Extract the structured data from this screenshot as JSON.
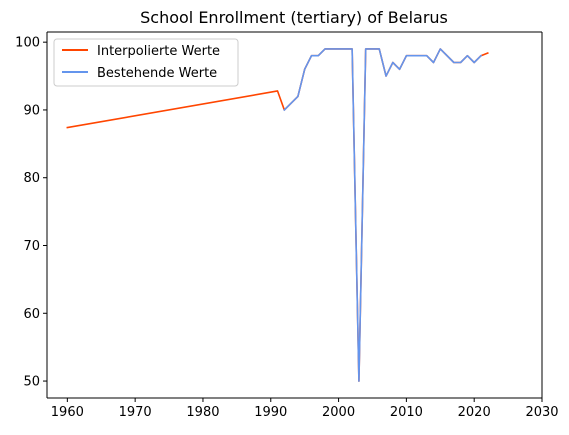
{
  "chart_data": {
    "type": "line",
    "title": "School Enrollment (tertiary) of Belarus",
    "xlabel": "",
    "ylabel": "",
    "xlim": [
      1957,
      2030
    ],
    "ylim": [
      47.5,
      101.5
    ],
    "xticks": [
      1960,
      1970,
      1980,
      1990,
      2000,
      2010,
      2020,
      2030
    ],
    "yticks": [
      50,
      60,
      70,
      80,
      90,
      100
    ],
    "grid": false,
    "legend_position": "top-left",
    "series": [
      {
        "name": "Interpolierte Werte",
        "color": "#ff4500",
        "x": [
          1960,
          1991,
          1992,
          1994,
          1995,
          1996,
          1997,
          1998,
          2002,
          2003,
          2004,
          2006,
          2007,
          2008,
          2009,
          2010,
          2013,
          2014,
          2015,
          2017,
          2018,
          2019,
          2020,
          2021,
          2022
        ],
        "y": [
          87.4,
          92.8,
          90.0,
          92.0,
          96.0,
          98.0,
          98.0,
          99.0,
          99.0,
          50.0,
          99.0,
          99.0,
          95.0,
          97.0,
          96.0,
          98.0,
          98.0,
          97.0,
          99.0,
          97.0,
          97.0,
          98.0,
          97.0,
          98.0,
          98.4
        ]
      },
      {
        "name": "Bestehende Werte",
        "color": "#6495ed",
        "x": [
          1992,
          1994,
          1995,
          1996,
          1997,
          1998,
          2002,
          2003,
          2004,
          2006,
          2007,
          2008,
          2009,
          2010,
          2013,
          2014,
          2015,
          2017,
          2018,
          2019,
          2020,
          2021
        ],
        "y": [
          90.0,
          92.0,
          96.0,
          98.0,
          98.0,
          99.0,
          99.0,
          50.0,
          99.0,
          99.0,
          95.0,
          97.0,
          96.0,
          98.0,
          98.0,
          97.0,
          99.0,
          97.0,
          97.0,
          98.0,
          97.0,
          98.0
        ]
      }
    ]
  }
}
